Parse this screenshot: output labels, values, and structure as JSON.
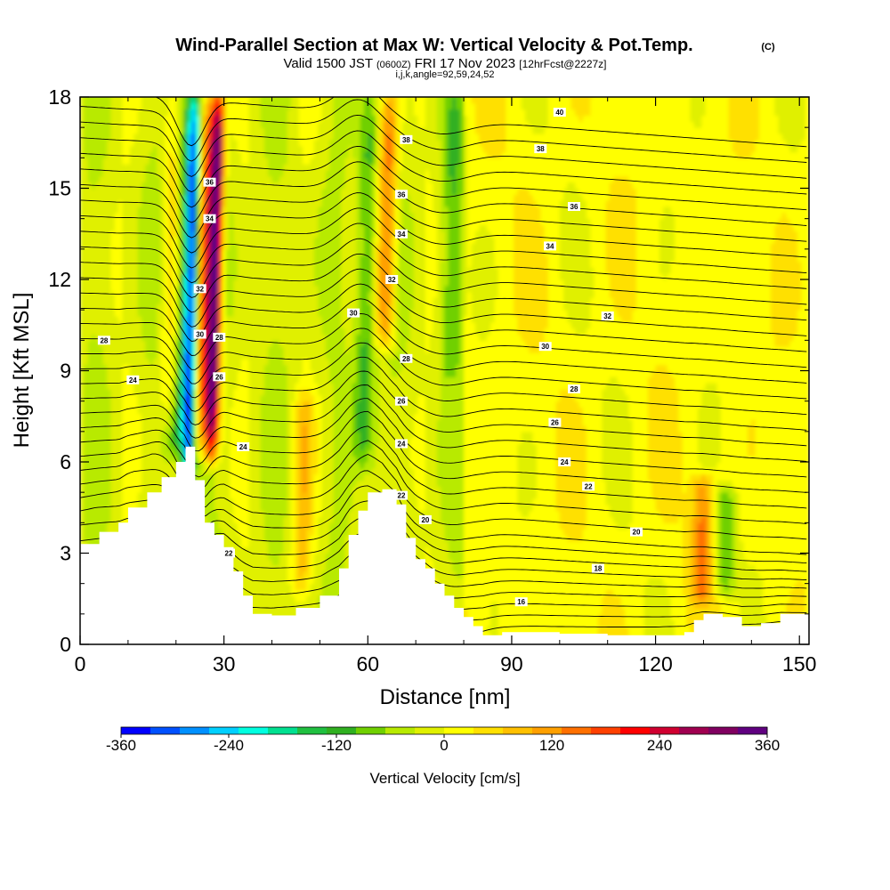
{
  "header": {
    "title": "Wind-Parallel Section at Max W: Vertical Velocity & Pot.Temp.",
    "copyright": "(C)",
    "valid_main": "Valid 1500 JST",
    "valid_utc": "(0600Z)",
    "valid_date": "FRI 17 Nov 2023",
    "forecast": "[12hrFcst@2227z]",
    "indices": "i,j,k,angle=92,59,24,52"
  },
  "colorbar": {
    "label": "Vertical Velocity [cm/s]",
    "tick_labels": [
      "-360",
      "-240",
      "-120",
      "0",
      "120",
      "240",
      "360"
    ],
    "colors": [
      "#0000ff",
      "#0050ff",
      "#0090ff",
      "#00d0ff",
      "#00ffe0",
      "#00e090",
      "#20c040",
      "#30b020",
      "#70d000",
      "#b8ea00",
      "#e0f000",
      "#ffff00",
      "#ffe000",
      "#ffc000",
      "#ffa000",
      "#ff7000",
      "#ff4000",
      "#ff0000",
      "#d00030",
      "#a00050",
      "#800060",
      "#600080"
    ]
  },
  "chart_data": {
    "type": "heatmap",
    "title": "Wind-Parallel Section at Max W: Vertical Velocity & Pot.Temp.",
    "xlabel": "Distance [nm]",
    "ylabel": "Height [Kft MSL]",
    "xlim": [
      0,
      152
    ],
    "ylim": [
      0,
      18
    ],
    "x_ticks": [
      0,
      30,
      60,
      90,
      120,
      150
    ],
    "y_ticks": [
      0,
      3,
      6,
      9,
      12,
      15,
      18
    ],
    "x_tick_labels": [
      "0",
      "30",
      "60",
      "90",
      "120",
      "150"
    ],
    "y_tick_labels": [
      "0",
      "3",
      "6",
      "9",
      "12",
      "15",
      "18"
    ],
    "color_variable": "Vertical Velocity [cm/s]",
    "color_range": [
      -360,
      360
    ],
    "terrain_profile": {
      "x": [
        0,
        4,
        8,
        10,
        14,
        17,
        20,
        22,
        24,
        26,
        28,
        30,
        32,
        34,
        36,
        40,
        45,
        50,
        54,
        56,
        58,
        60,
        63,
        66,
        68,
        70,
        72,
        74,
        76,
        78,
        80,
        82,
        84,
        88,
        95,
        100,
        110,
        120,
        126,
        128,
        130,
        134,
        138,
        142,
        146,
        152
      ],
      "y": [
        3.3,
        3.7,
        4.0,
        4.5,
        5.0,
        5.5,
        6.0,
        6.5,
        5.4,
        4.0,
        3.6,
        3.2,
        2.4,
        1.6,
        1.0,
        0.95,
        1.2,
        1.6,
        2.5,
        3.6,
        4.4,
        5.0,
        5.1,
        4.6,
        3.5,
        2.8,
        2.5,
        2.0,
        1.6,
        1.2,
        0.9,
        0.6,
        0.3,
        0.4,
        0.4,
        0.35,
        0.3,
        0.3,
        0.4,
        0.8,
        1.0,
        0.9,
        0.6,
        0.7,
        1.0,
        1.0
      ]
    },
    "features": [
      {
        "kind": "downdraft",
        "x": 22.5,
        "y_range": [
          5.2,
          18
        ],
        "value": -300
      },
      {
        "kind": "downdraft",
        "x": 20.5,
        "y_range": [
          6.5,
          18
        ],
        "value": -160
      },
      {
        "kind": "updraft",
        "x": 27.5,
        "y_range": [
          6.2,
          18
        ],
        "value": 320
      },
      {
        "kind": "updraft",
        "x": 25.5,
        "y_range": [
          6.5,
          18
        ],
        "value": 200
      },
      {
        "kind": "updraft",
        "x": 19.0,
        "y_range": [
          7.5,
          18
        ],
        "value": 120
      },
      {
        "kind": "downdraft",
        "x": 59.0,
        "y_range": [
          6.0,
          18
        ],
        "value": -110
      },
      {
        "kind": "updraft",
        "x": 63.5,
        "y_range": [
          10.0,
          18
        ],
        "value": 170
      },
      {
        "kind": "downdraft",
        "x": 77.0,
        "y_range": [
          9.0,
          18
        ],
        "value": -70
      },
      {
        "kind": "updraft",
        "x": 46.0,
        "y_range": [
          2.0,
          8.0
        ],
        "value": 90
      },
      {
        "kind": "updraft",
        "x": 129.5,
        "y_range": [
          1.8,
          5.2
        ],
        "value": 120
      },
      {
        "kind": "downdraft",
        "x": 134.5,
        "y_range": [
          2.0,
          4.8
        ],
        "value": -110
      }
    ],
    "isentropes": {
      "variable": "Potential Temperature",
      "labels": [
        {
          "text": "40",
          "x": 100,
          "y": 17.5
        },
        {
          "text": "38",
          "x": 68,
          "y": 16.6
        },
        {
          "text": "38",
          "x": 96,
          "y": 16.3
        },
        {
          "text": "36",
          "x": 27,
          "y": 15.2
        },
        {
          "text": "36",
          "x": 67,
          "y": 14.8
        },
        {
          "text": "36",
          "x": 103,
          "y": 14.4
        },
        {
          "text": "34",
          "x": 27,
          "y": 14.0
        },
        {
          "text": "34",
          "x": 67,
          "y": 13.5
        },
        {
          "text": "34",
          "x": 98,
          "y": 13.1
        },
        {
          "text": "32",
          "x": 25,
          "y": 11.7
        },
        {
          "text": "32",
          "x": 65,
          "y": 12.0
        },
        {
          "text": "32",
          "x": 110,
          "y": 10.8
        },
        {
          "text": "30",
          "x": 25,
          "y": 10.2
        },
        {
          "text": "30",
          "x": 57,
          "y": 10.9
        },
        {
          "text": "30",
          "x": 97,
          "y": 9.8
        },
        {
          "text": "28",
          "x": 5,
          "y": 10.0
        },
        {
          "text": "28",
          "x": 29,
          "y": 10.1
        },
        {
          "text": "28",
          "x": 68,
          "y": 9.4
        },
        {
          "text": "28",
          "x": 103,
          "y": 8.4
        },
        {
          "text": "26",
          "x": 29,
          "y": 8.8
        },
        {
          "text": "26",
          "x": 67,
          "y": 8.0
        },
        {
          "text": "26",
          "x": 99,
          "y": 7.3
        },
        {
          "text": "24",
          "x": 11,
          "y": 8.7
        },
        {
          "text": "24",
          "x": 34,
          "y": 6.5
        },
        {
          "text": "24",
          "x": 67,
          "y": 6.6
        },
        {
          "text": "24",
          "x": 101,
          "y": 6.0
        },
        {
          "text": "22",
          "x": 67,
          "y": 4.9
        },
        {
          "text": "22",
          "x": 106,
          "y": 5.2
        },
        {
          "text": "22",
          "x": 31,
          "y": 3.0
        },
        {
          "text": "20",
          "x": 72,
          "y": 4.1
        },
        {
          "text": "20",
          "x": 116,
          "y": 3.7
        },
        {
          "text": "18",
          "x": 108,
          "y": 2.5
        },
        {
          "text": "16",
          "x": 92,
          "y": 1.4
        }
      ]
    }
  }
}
